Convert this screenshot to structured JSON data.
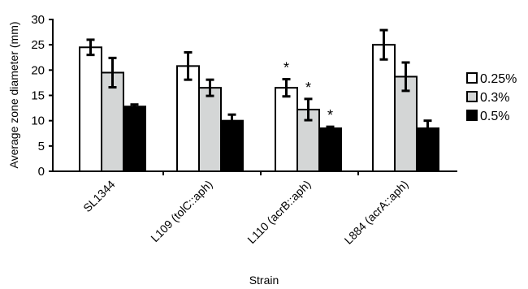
{
  "chart_data": {
    "type": "bar",
    "title": "",
    "xlabel": "Strain",
    "ylabel": "Average zone diameter (mm)",
    "ylim": [
      0,
      30
    ],
    "yticks": [
      0,
      5,
      10,
      15,
      20,
      25,
      30
    ],
    "grid": false,
    "legend_position": "right",
    "categories": [
      "SL1344",
      "L109 (tolC::aph)",
      "L110 (acrB::aph)",
      "L884 (acrA::aph)"
    ],
    "series": [
      {
        "name": "0.25%",
        "color": "#ffffff",
        "values": [
          24.5,
          20.8,
          16.5,
          25.0
        ],
        "errors": [
          1.5,
          2.7,
          1.7,
          2.9
        ],
        "significant": [
          false,
          false,
          true,
          false
        ]
      },
      {
        "name": "0.3%",
        "color": "#d4d6d6",
        "values": [
          19.5,
          16.5,
          12.2,
          18.7
        ],
        "errors": [
          2.9,
          1.6,
          2.1,
          2.8
        ],
        "significant": [
          false,
          false,
          true,
          false
        ]
      },
      {
        "name": "0.5%",
        "color": "#000000",
        "values": [
          12.8,
          10.0,
          8.5,
          8.5
        ],
        "errors": [
          0.4,
          1.2,
          0.3,
          1.5
        ],
        "significant": [
          false,
          false,
          true,
          false
        ]
      }
    ],
    "significance_marker": "*"
  }
}
